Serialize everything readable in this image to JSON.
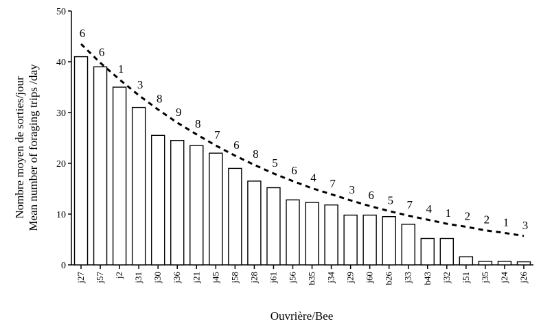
{
  "chart_data": {
    "type": "bar",
    "title": "",
    "xlabel": "Ouvrière/Bee",
    "ylabel_lines": [
      "Nombre moyen de sorties/jour",
      "Mean number of foraging trips /day"
    ],
    "ylim": [
      0,
      50
    ],
    "yticks": [
      0,
      10,
      20,
      30,
      40,
      50
    ],
    "categories": [
      "j27",
      "j57",
      "j2",
      "j31",
      "j30",
      "j36",
      "j21",
      "j45",
      "j58",
      "j28",
      "j61",
      "j56",
      "b35",
      "j34",
      "j29",
      "j60",
      "b26",
      "j33",
      "b43",
      "j32",
      "j51",
      "j35",
      "j24",
      "j26"
    ],
    "values": [
      41,
      39,
      35,
      31,
      25.5,
      24.5,
      23.5,
      22,
      19,
      16.5,
      15.2,
      12.8,
      12.3,
      11.8,
      9.8,
      9.8,
      9.5,
      8,
      5.2,
      5.2,
      1.6,
      0.7,
      0.7,
      0.6
    ],
    "bar_labels": [
      "6",
      "6",
      "1",
      "3",
      "8",
      "9",
      "8",
      "7",
      "6",
      "8",
      "5",
      "6",
      "4",
      "7",
      "3",
      "6",
      "5",
      "7",
      "4",
      "1",
      "2",
      "2",
      "1",
      "3"
    ],
    "trend": {
      "style": "dashed",
      "kind": "exponential-fit",
      "values": [
        43.5,
        39.8,
        36.5,
        33.4,
        30.6,
        28.0,
        25.7,
        23.5,
        21.5,
        19.7,
        18.0,
        16.5,
        15.1,
        13.9,
        12.7,
        11.6,
        10.6,
        9.7,
        8.9,
        8.1,
        7.5,
        6.8,
        6.3,
        5.7
      ]
    },
    "grid": false,
    "legend": "none"
  }
}
